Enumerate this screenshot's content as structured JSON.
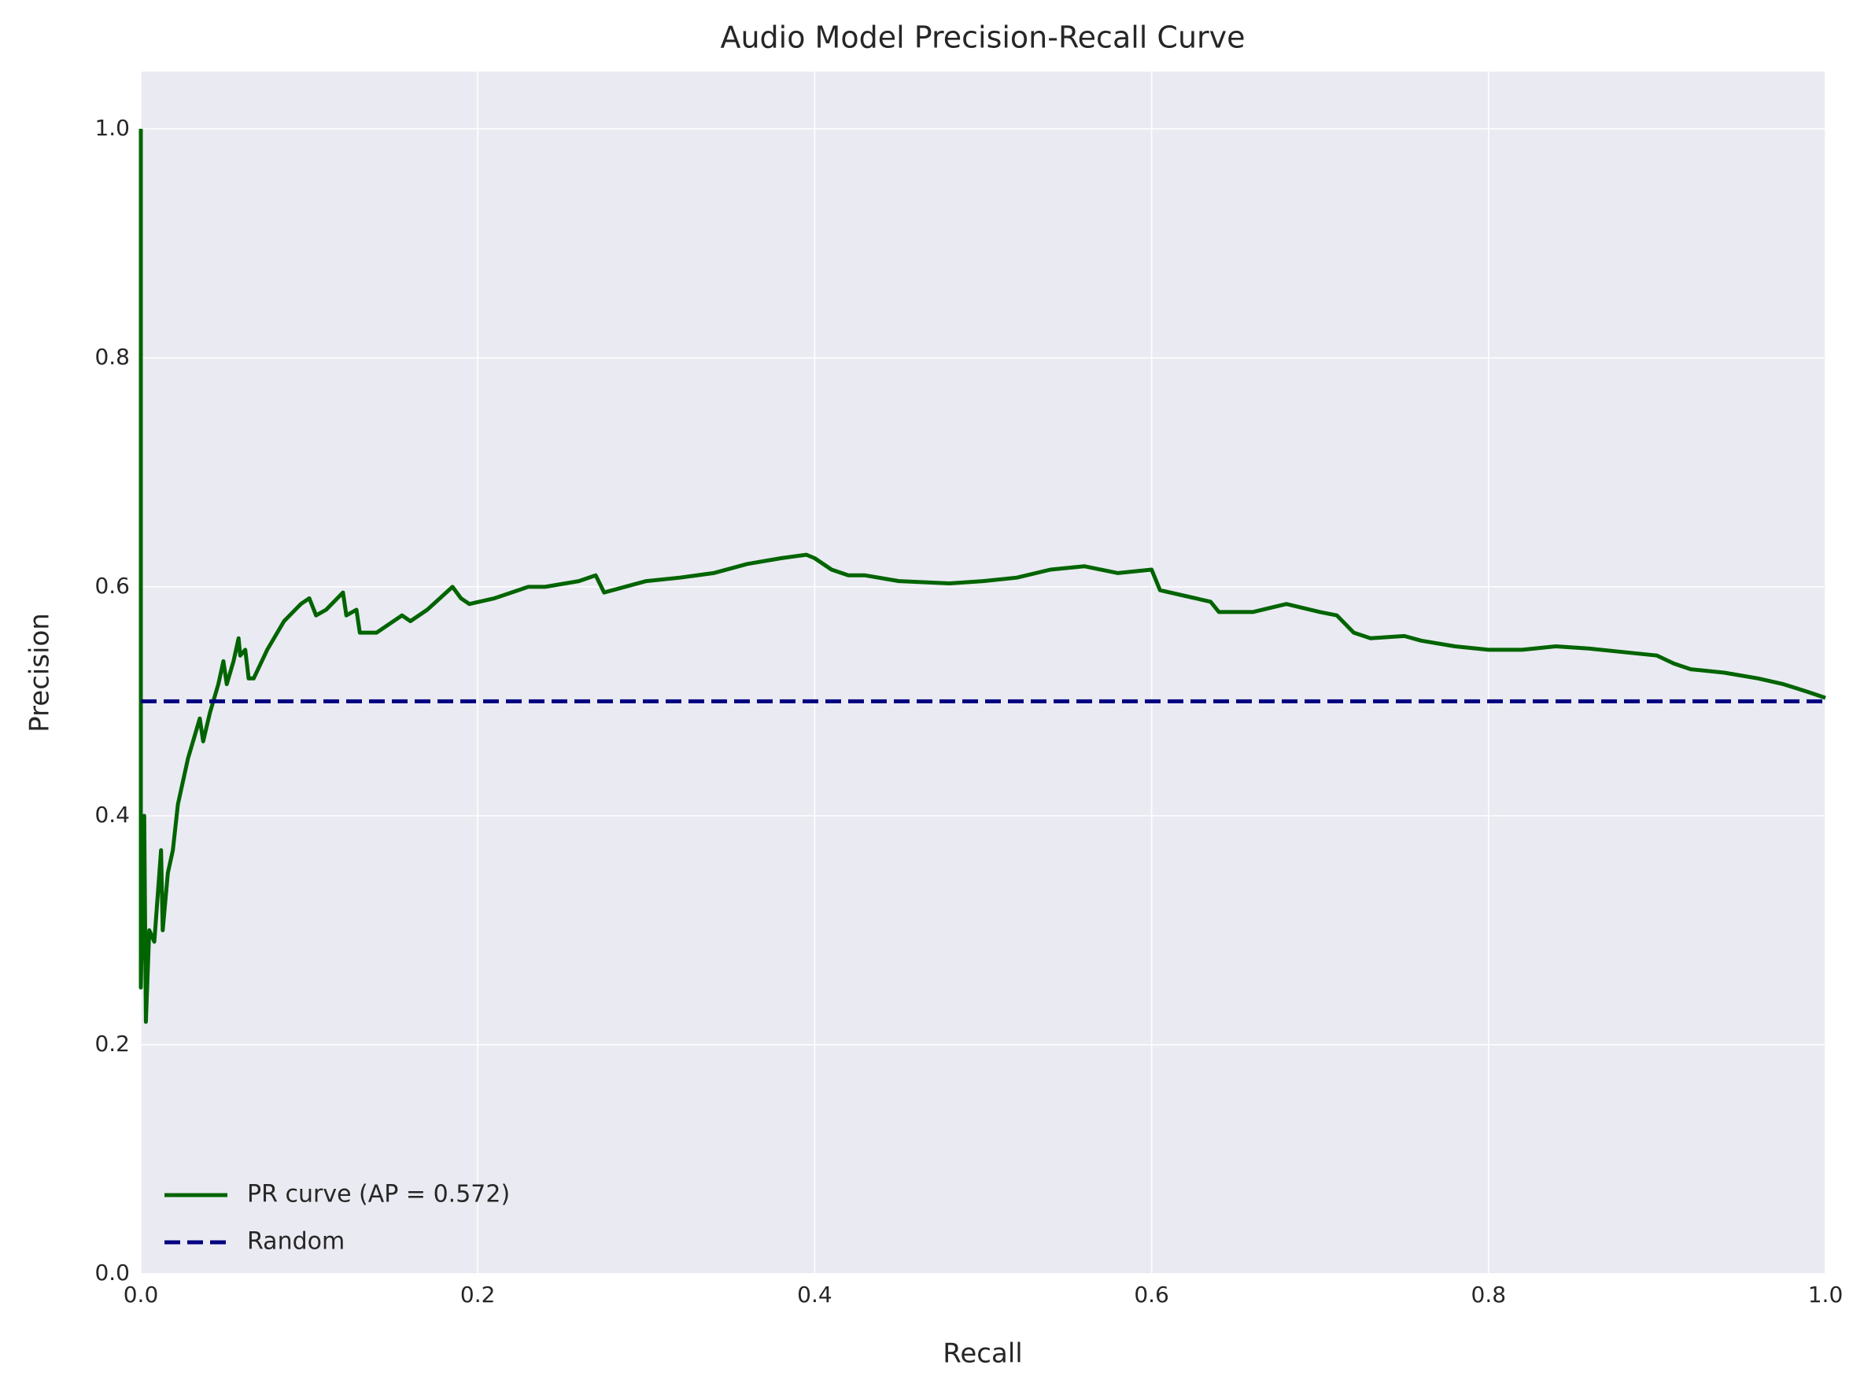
{
  "chart_data": {
    "type": "line",
    "title": "Audio Model Precision-Recall Curve",
    "x_label": "Recall",
    "y_label": "Precision",
    "xlim": [
      0,
      1
    ],
    "ylim": [
      0,
      1.05
    ],
    "xticks": [
      {
        "value": 0,
        "label": "0.0"
      },
      0.2,
      0.4,
      0.6,
      0.8,
      {
        "value": 1,
        "label": "1.0"
      }
    ],
    "yticks": [
      {
        "value": 0,
        "label": "0.0"
      },
      0.2,
      0.4,
      0.6,
      0.8,
      {
        "value": 1,
        "label": "1.0"
      }
    ],
    "grid": true,
    "legend": "lower left",
    "series": [
      {
        "name": "PR curve (AP = 0.572)",
        "color": "#006400",
        "style": "solid",
        "x": [
          0,
          0,
          0.002,
          0.003,
          0.005,
          0.008,
          0.01,
          0.012,
          0.013,
          0.016,
          0.019,
          0.022,
          0.025,
          0.028,
          0.032,
          0.035,
          0.037,
          0.041,
          0.046,
          0.049,
          0.051,
          0.055,
          0.058,
          0.059,
          0.062,
          0.064,
          0.067,
          0.075,
          0.085,
          0.095,
          0.1,
          0.104,
          0.11,
          0.12,
          0.122,
          0.128,
          0.13,
          0.14,
          0.155,
          0.16,
          0.17,
          0.185,
          0.19,
          0.195,
          0.21,
          0.23,
          0.24,
          0.26,
          0.27,
          0.275,
          0.3,
          0.32,
          0.34,
          0.36,
          0.38,
          0.395,
          0.4,
          0.41,
          0.42,
          0.43,
          0.45,
          0.48,
          0.5,
          0.52,
          0.54,
          0.56,
          0.58,
          0.6,
          0.605,
          0.62,
          0.635,
          0.64,
          0.66,
          0.68,
          0.7,
          0.71,
          0.72,
          0.73,
          0.75,
          0.76,
          0.78,
          0.8,
          0.82,
          0.84,
          0.86,
          0.88,
          0.9,
          0.91,
          0.92,
          0.94,
          0.96,
          0.975,
          0.99,
          1.0
        ],
        "values": [
          1.0,
          0.25,
          0.4,
          0.22,
          0.3,
          0.29,
          0.33,
          0.37,
          0.3,
          0.35,
          0.37,
          0.41,
          0.43,
          0.45,
          0.47,
          0.485,
          0.465,
          0.49,
          0.515,
          0.535,
          0.515,
          0.535,
          0.555,
          0.54,
          0.545,
          0.52,
          0.52,
          0.545,
          0.57,
          0.585,
          0.59,
          0.575,
          0.58,
          0.595,
          0.575,
          0.58,
          0.56,
          0.56,
          0.575,
          0.57,
          0.58,
          0.6,
          0.59,
          0.585,
          0.59,
          0.6,
          0.6,
          0.605,
          0.61,
          0.595,
          0.605,
          0.608,
          0.612,
          0.62,
          0.625,
          0.628,
          0.625,
          0.615,
          0.61,
          0.61,
          0.605,
          0.603,
          0.605,
          0.608,
          0.615,
          0.618,
          0.612,
          0.615,
          0.597,
          0.592,
          0.587,
          0.578,
          0.578,
          0.585,
          0.578,
          0.575,
          0.56,
          0.555,
          0.557,
          0.553,
          0.548,
          0.545,
          0.545,
          0.548,
          0.546,
          0.543,
          0.54,
          0.533,
          0.528,
          0.525,
          0.52,
          0.515,
          0.508,
          0.503
        ]
      },
      {
        "name": "Random",
        "color": "#000080",
        "style": "dashed",
        "x": [
          0,
          1
        ],
        "values": [
          0.5,
          0.5
        ]
      }
    ]
  }
}
